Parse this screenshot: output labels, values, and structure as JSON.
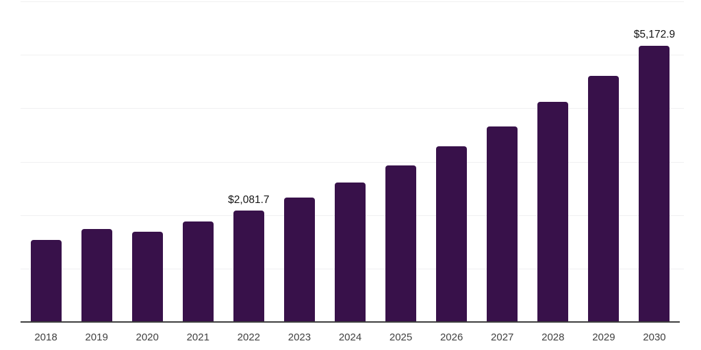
{
  "chart_data": {
    "type": "bar",
    "title": "",
    "xlabel": "",
    "ylabel": "",
    "categories": [
      "2018",
      "2019",
      "2020",
      "2021",
      "2022",
      "2023",
      "2024",
      "2025",
      "2026",
      "2027",
      "2028",
      "2029",
      "2030"
    ],
    "values": [
      1540,
      1740,
      1685,
      1880,
      2081.7,
      2332,
      2615,
      2930,
      3285,
      3660,
      4120,
      4610,
      5172.9
    ],
    "value_labels": [
      "",
      "",
      "",
      "",
      "$2,081.7",
      "",
      "",
      "",
      "",
      "",
      "",
      "",
      "$5,172.9"
    ],
    "ylim": [
      0,
      6000
    ],
    "gridline_step": 1000,
    "grid": "horizontal",
    "y_tick_labels_visible": false,
    "legend_position": "none",
    "colors": {
      "bar": "#38114A",
      "axis_line": "#3D3D3D",
      "gridline": "#F0F0F1",
      "x_tick_label": "#404040",
      "value_label": "#141414",
      "background": "#FFFFFF"
    }
  }
}
